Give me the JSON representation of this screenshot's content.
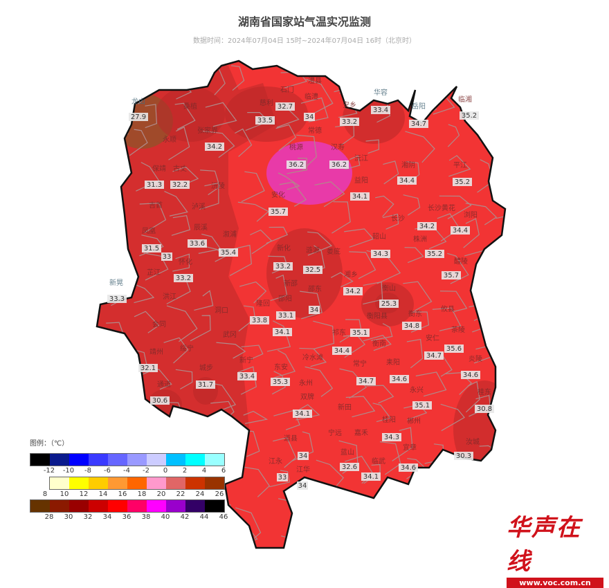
{
  "title": "湖南省国家站气温实况监测",
  "subtitle": "数据时间：2024年07月04日 15时~2024年07月04日 16时（北京时）",
  "colors": {
    "base": "#f23434",
    "west": "#d42e2e",
    "hot": "#e83aa8",
    "cool_brown": "#a04a2a",
    "boundary": "#b08a8a",
    "outline": "#111111"
  },
  "place_names": [
    "龙山",
    "桑植",
    "石门",
    "澧县",
    "临澧",
    "慈利",
    "张家界",
    "永顺",
    "华容",
    "岳阳",
    "临湘",
    "安乡",
    "常德",
    "桃源",
    "汉寿",
    "沅江",
    "湘阴",
    "平江",
    "保靖",
    "古丈",
    "沅陵",
    "益阳",
    "安化",
    "长沙",
    "长沙黄花",
    "浏阳",
    "吉首",
    "泸溪",
    "凤凰",
    "辰溪",
    "溆浦",
    "新化",
    "涟源",
    "娄底",
    "韶山",
    "株洲",
    "醴陵",
    "怀化",
    "芷江",
    "湘乡",
    "新晃",
    "新邵",
    "邵阳",
    "邵东",
    "衡山",
    "洪江",
    "隆回",
    "洞口",
    "衡阳县",
    "衡东",
    "攸县",
    "会同",
    "武冈",
    "祁东",
    "衡南",
    "茶陵",
    "安仁",
    "靖州",
    "绥宁",
    "新宁",
    "东安",
    "冷水滩",
    "常宁",
    "耒阳",
    "炎陵",
    "通道",
    "城步",
    "永州",
    "永兴",
    "桂东",
    "双牌",
    "新田",
    "桂阳",
    "郴州",
    "宁远",
    "道县",
    "嘉禾",
    "汝城",
    "宜章",
    "江永",
    "江华",
    "蓝山",
    "临武"
  ],
  "temperatures": [
    "27.9",
    "32.7",
    "33.5",
    "34",
    "33.2",
    "33.4",
    "34.7",
    "35.2",
    "34.2",
    "36.2",
    "36.2",
    "34.4",
    "35.2",
    "31.3",
    "32.2",
    "34.1",
    "35.7",
    "34.2",
    "34.4",
    "31.5",
    "33.6",
    "33",
    "35.4",
    "33.2",
    "32.5",
    "34.3",
    "35.2",
    "35.7",
    "33.2",
    "33.3",
    "34.2",
    "25.3",
    "34",
    "33.1",
    "33.8",
    "34.8",
    "34.1",
    "35.1",
    "34.4",
    "35.6",
    "34.7",
    "32.1",
    "31.7",
    "33.4",
    "35.3",
    "34.7",
    "34.6",
    "34.6",
    "30.6",
    "35.1",
    "30.8",
    "34.1",
    "34.3",
    "30.3",
    "34",
    "32.6",
    "34.6",
    "33",
    "34.1",
    "34"
  ],
  "legend": {
    "title": "图例：（℃）",
    "rows": [
      {
        "colors": [
          "#000000",
          "#0a1a8c",
          "#0000ff",
          "#3a3aff",
          "#6666ff",
          "#9999ff",
          "#ccccff",
          "#00c0ff",
          "#00ffff",
          "#99ffff"
        ],
        "labels": [
          "-12",
          "-10",
          "-8",
          "-6",
          "-4",
          "-2",
          "0",
          "2",
          "4",
          "6"
        ]
      },
      {
        "colors": [
          "#ffffcc",
          "#ffff00",
          "#ffcc00",
          "#ff9933",
          "#ff6600",
          "#ff99cc",
          "#e06666",
          "#cc3300",
          "#993300"
        ],
        "labels": [
          "8",
          "10",
          "12",
          "14",
          "16",
          "18",
          "20",
          "22",
          "24",
          "26"
        ]
      },
      {
        "colors": [
          "#663300",
          "#8b1a00",
          "#990000",
          "#cc0000",
          "#ff0000",
          "#ff0066",
          "#ff00ff",
          "#9900cc",
          "#330066",
          "#000000"
        ],
        "labels": [
          "28",
          "30",
          "32",
          "34",
          "36",
          "38",
          "40",
          "42",
          "44",
          "46"
        ]
      }
    ]
  },
  "logo": {
    "brand": "华声在线",
    "url": "www.voc.com.cn"
  }
}
